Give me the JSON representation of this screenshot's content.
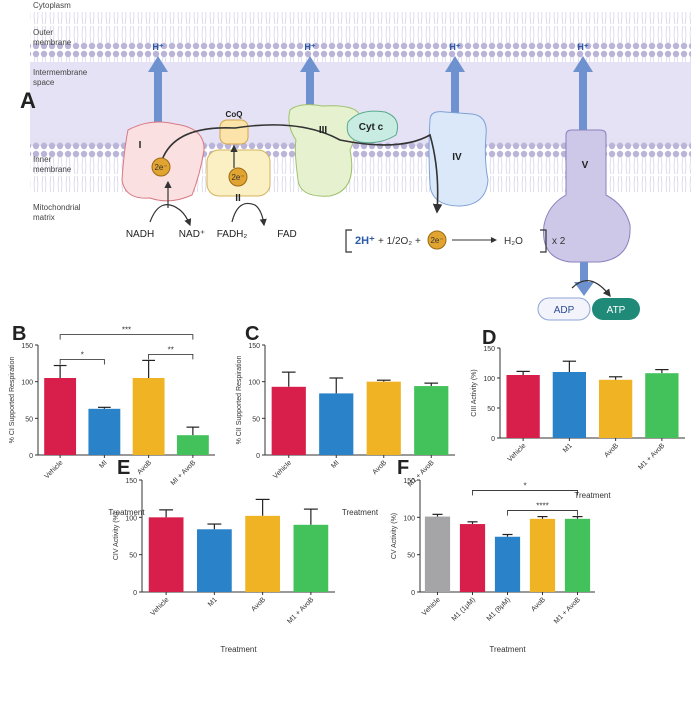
{
  "diagram": {
    "panel": "A",
    "regions": {
      "cytoplasm": "Cytoplasm",
      "outer": [
        "Outer",
        "membrane"
      ],
      "intermembrane": [
        "Intermembrane",
        "space"
      ],
      "inner": [
        "Inner",
        "membrane"
      ],
      "matrix": [
        "Mitochondrial",
        "matrix"
      ]
    },
    "protons": [
      "H⁺",
      "H⁺",
      "H⁺",
      "H⁺"
    ],
    "complexes": {
      "c1": "I",
      "c2": "II",
      "c3": "III",
      "c4": "IV",
      "c5": "V",
      "coq": "CoQ",
      "cytc": "Cyt c"
    },
    "electrons": [
      "2e⁻",
      "2e⁻",
      "2e⁻"
    ],
    "substrates": {
      "nadh": "NADH",
      "nad": "NAD⁺",
      "fadh2": "FADH₂",
      "fad": "FAD"
    },
    "equation": {
      "protons": "2H⁺",
      "oxygen": "+ 1/2O₂ +",
      "water": "H₂O",
      "times": "x 2"
    },
    "atp": {
      "adp": "ADP",
      "atp": "ATP"
    }
  },
  "chart_data": [
    {
      "type": "bar",
      "label": "B",
      "y_label": "% CI Supported Respiration",
      "x_label": "Treatment",
      "categories": [
        "Vehicle",
        "MI",
        "AvoB",
        "MI + AvoB"
      ],
      "values": [
        105,
        63,
        105,
        27
      ],
      "errors": [
        17,
        2,
        24,
        11
      ],
      "colors": [
        "#d81e4a",
        "#2a82c8",
        "#f0b323",
        "#43c15a"
      ],
      "ylim": [
        0,
        150
      ],
      "yticks": [
        0,
        50,
        100,
        150
      ],
      "significance": [
        {
          "from": "Vehicle",
          "to": "MI",
          "label": "*"
        },
        {
          "from": "Vehicle",
          "to": "MI + AvoB",
          "label": "***"
        },
        {
          "from": "AvoB",
          "to": "MI + AvoB",
          "label": "**"
        }
      ]
    },
    {
      "type": "bar",
      "label": "C",
      "y_label": "% CII Supported Respiration",
      "x_label": "Treatment",
      "categories": [
        "Vehicle",
        "MI",
        "AvoB",
        "M1 + AvoB"
      ],
      "values": [
        93,
        84,
        100,
        94
      ],
      "errors": [
        20,
        21,
        2,
        4
      ],
      "colors": [
        "#d81e4a",
        "#2a82c8",
        "#f0b323",
        "#43c15a"
      ],
      "ylim": [
        0,
        150
      ],
      "yticks": [
        0,
        50,
        100,
        150
      ]
    },
    {
      "type": "bar",
      "label": "D",
      "y_label": "CIII Activity (%)",
      "x_label": "Treatment",
      "categories": [
        "Vehicle",
        "M1",
        "AvoB",
        "M1 + AvoB"
      ],
      "values": [
        105,
        110,
        97,
        108
      ],
      "errors": [
        6,
        18,
        5,
        6
      ],
      "colors": [
        "#d81e4a",
        "#2a82c8",
        "#f0b323",
        "#43c15a"
      ],
      "ylim": [
        0,
        150
      ],
      "yticks": [
        0,
        50,
        100,
        150
      ]
    },
    {
      "type": "bar",
      "label": "E",
      "y_label": "CIV Activity (%)",
      "x_label": "Treatment",
      "categories": [
        "Vehicle",
        "M1",
        "AvoB",
        "M1 + AvoB"
      ],
      "values": [
        100,
        84,
        102,
        90
      ],
      "errors": [
        10,
        7,
        22,
        21
      ],
      "colors": [
        "#d81e4a",
        "#2a82c8",
        "#f0b323",
        "#43c15a"
      ],
      "ylim": [
        0,
        150
      ],
      "yticks": [
        0,
        50,
        100,
        150
      ]
    },
    {
      "type": "bar",
      "label": "F",
      "y_label": "CV Activity (%)",
      "x_label": "Treatment",
      "categories": [
        "Vehicle",
        "M1 (1μM)",
        "M1 (8μM)",
        "AvoB",
        "M1 + AvoB"
      ],
      "values": [
        101,
        91,
        74,
        98,
        98
      ],
      "errors": [
        3,
        3,
        3,
        3,
        3
      ],
      "colors": [
        "#a5a4a6",
        "#d81e4a",
        "#2a82c8",
        "#f0b323",
        "#43c15a"
      ],
      "ylim": [
        0,
        150
      ],
      "yticks": [
        0,
        50,
        100,
        150
      ],
      "significance": [
        {
          "from": "M1 (1μM)",
          "to": "M1 + AvoB",
          "label": "*"
        },
        {
          "from": "M1 (8μM)",
          "to": "M1 + AvoB",
          "label": "****"
        }
      ]
    }
  ]
}
